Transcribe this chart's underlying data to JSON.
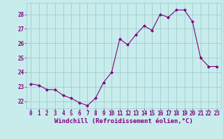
{
  "x": [
    0,
    1,
    2,
    3,
    4,
    5,
    6,
    7,
    8,
    9,
    10,
    11,
    12,
    13,
    14,
    15,
    16,
    17,
    18,
    19,
    20,
    21,
    22,
    23
  ],
  "y": [
    23.2,
    23.1,
    22.8,
    22.8,
    22.4,
    22.2,
    21.9,
    21.7,
    22.2,
    23.3,
    24.0,
    26.3,
    25.9,
    26.6,
    27.2,
    26.9,
    28.0,
    27.8,
    28.3,
    28.3,
    27.5,
    25.0,
    24.4,
    24.4
  ],
  "line_color": "#800080",
  "marker_color": "#800080",
  "bg_color": "#c8ecec",
  "grid_color": "#a0cccc",
  "axis_label_color": "#800080",
  "xlabel": "Windchill (Refroidissement éolien,°C)",
  "ylim": [
    21.5,
    28.8
  ],
  "xlim": [
    -0.5,
    23.5
  ],
  "yticks": [
    22,
    23,
    24,
    25,
    26,
    27,
    28
  ],
  "xticks": [
    0,
    1,
    2,
    3,
    4,
    5,
    6,
    7,
    8,
    9,
    10,
    11,
    12,
    13,
    14,
    15,
    16,
    17,
    18,
    19,
    20,
    21,
    22,
    23
  ],
  "tick_fontsize": 5.5,
  "xlabel_fontsize": 6.5
}
